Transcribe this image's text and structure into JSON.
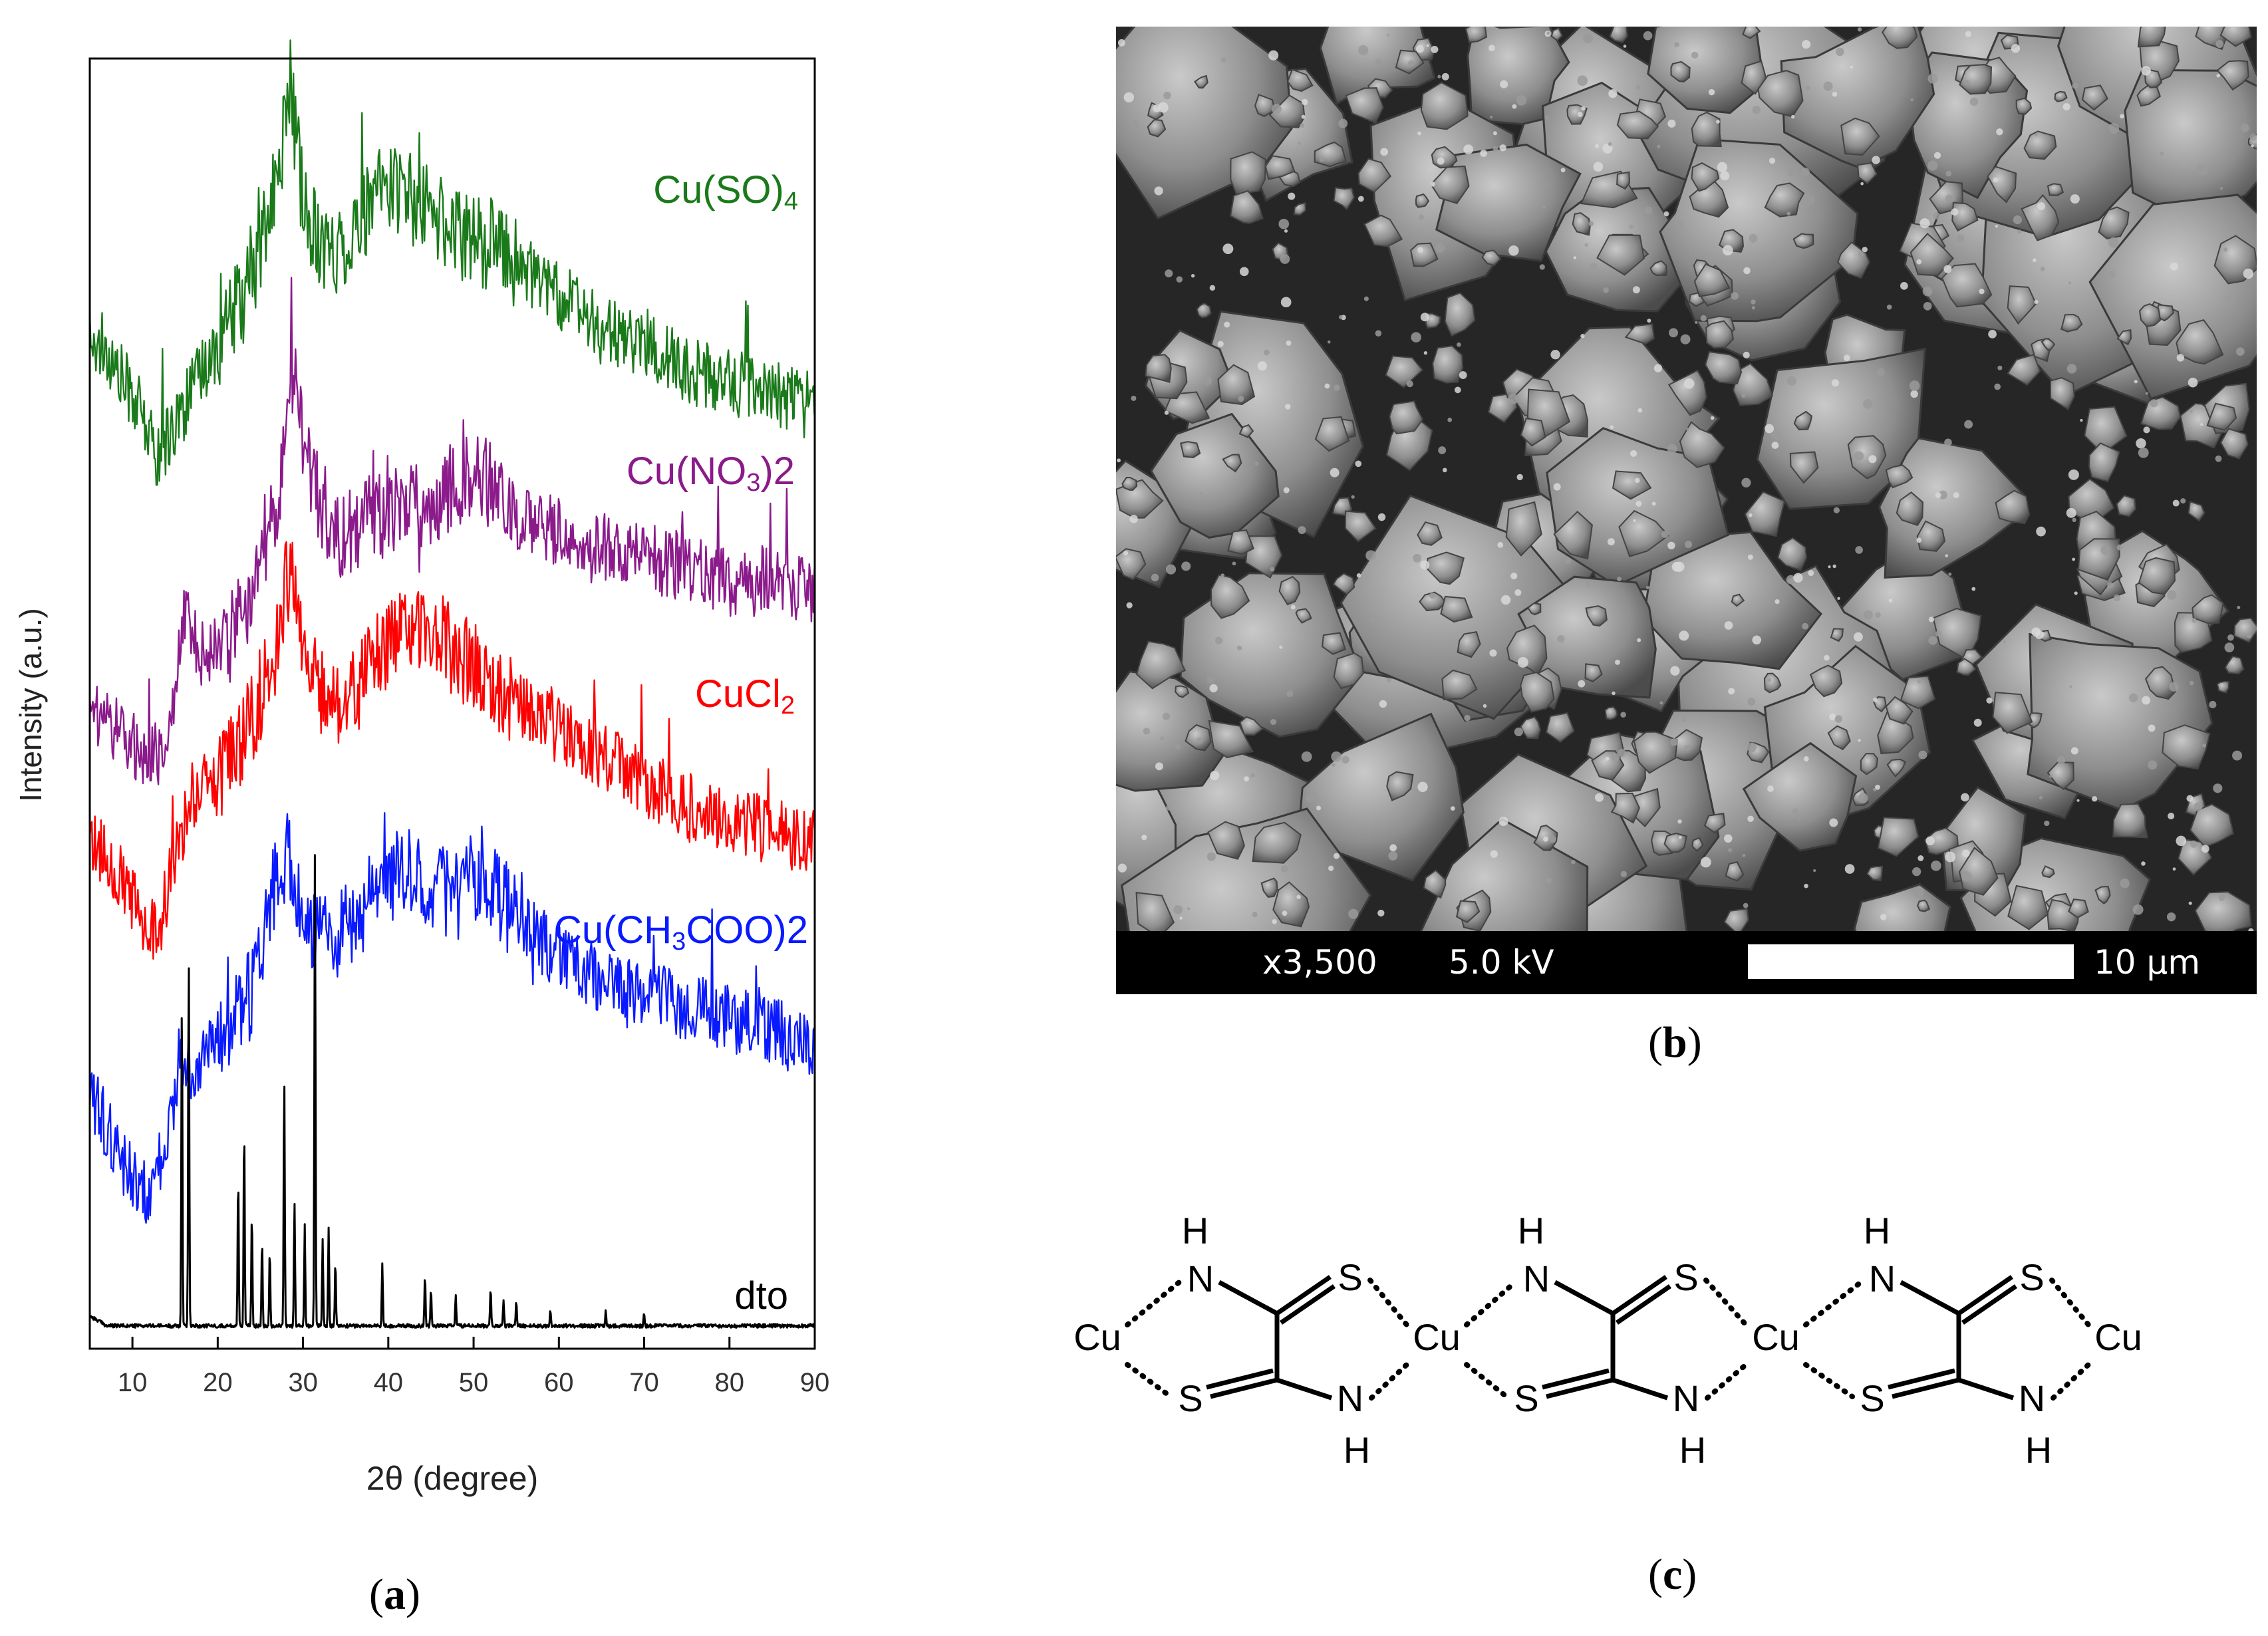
{
  "panels": {
    "a": {
      "open": "(",
      "letter": "a",
      "close": ")"
    },
    "b": {
      "open": "(",
      "letter": "b",
      "close": ")"
    },
    "c": {
      "open": "(",
      "letter": "c",
      "close": ")"
    }
  },
  "chart_data": {
    "type": "line",
    "xlabel": "2θ (degree)",
    "ylabel": "Intensity (a.u.)",
    "xlim": [
      5,
      90
    ],
    "xticks": [
      10,
      20,
      30,
      40,
      50,
      60,
      70,
      80,
      90
    ],
    "series": [
      {
        "name": "Cu(SO)4",
        "label_main": "Cu(SO)",
        "label_sub": "4",
        "label_tail": "",
        "color": "#1a7a1a",
        "x": [
          5,
          10,
          13,
          16,
          20,
          24,
          27,
          28.5,
          30,
          33,
          36,
          40,
          44,
          48,
          52,
          56,
          60,
          65,
          70,
          75,
          80,
          85,
          90
        ],
        "y": [
          0.8,
          0.75,
          0.7,
          0.74,
          0.79,
          0.84,
          0.92,
          1.0,
          0.9,
          0.86,
          0.88,
          0.92,
          0.9,
          0.88,
          0.87,
          0.85,
          0.83,
          0.8,
          0.79,
          0.77,
          0.76,
          0.75,
          0.74
        ]
      },
      {
        "name": "Cu(NO3)2",
        "label_main": "Cu(NO",
        "label_sub": "3",
        "label_tail": ")2",
        "color": "#8b1a8b",
        "x": [
          5,
          10,
          13,
          15,
          16,
          18,
          21,
          24,
          27,
          29,
          31,
          34,
          38,
          42,
          46,
          50,
          55,
          60,
          65,
          70,
          75,
          80,
          85,
          90
        ],
        "y": [
          0.5,
          0.47,
          0.46,
          0.5,
          0.58,
          0.54,
          0.55,
          0.59,
          0.66,
          0.76,
          0.68,
          0.64,
          0.65,
          0.66,
          0.67,
          0.69,
          0.65,
          0.64,
          0.63,
          0.62,
          0.61,
          0.6,
          0.6,
          0.59
        ]
      },
      {
        "name": "CuCl2",
        "label_main": "CuCl",
        "label_sub": "2",
        "label_tail": "",
        "color": "#ff0000",
        "x": [
          5,
          8,
          11,
          13,
          15,
          17,
          20,
          24,
          27,
          28.5,
          30,
          33,
          37,
          41,
          44,
          48,
          52,
          56,
          60,
          65,
          70,
          75,
          80,
          85,
          90
        ],
        "y": [
          0.4,
          0.37,
          0.33,
          0.32,
          0.38,
          0.43,
          0.44,
          0.49,
          0.55,
          0.62,
          0.54,
          0.5,
          0.52,
          0.56,
          0.57,
          0.54,
          0.52,
          0.5,
          0.48,
          0.46,
          0.44,
          0.42,
          0.41,
          0.4,
          0.39
        ]
      },
      {
        "name": "Cu(CH3COO)2",
        "label_main": "Cu(CH",
        "label_sub": "3",
        "label_tail": "COO)2",
        "color": "#0a1aff",
        "x": [
          5,
          8,
          10,
          12,
          14,
          15.5,
          17,
          20,
          24,
          27,
          28.5,
          30,
          33,
          37,
          41,
          44,
          48,
          51,
          55,
          60,
          65,
          70,
          75,
          80,
          85,
          90
        ],
        "y": [
          0.19,
          0.15,
          0.12,
          0.11,
          0.15,
          0.22,
          0.21,
          0.23,
          0.27,
          0.37,
          0.38,
          0.33,
          0.31,
          0.34,
          0.37,
          0.36,
          0.35,
          0.37,
          0.33,
          0.3,
          0.28,
          0.27,
          0.26,
          0.25,
          0.24,
          0.23
        ]
      },
      {
        "name": "dto",
        "label_main": "dto",
        "label_sub": "",
        "label_tail": "",
        "color": "#000000",
        "baseline": 0.005,
        "peaks": [
          [
            15.8,
            0.26
          ],
          [
            16.6,
            0.3
          ],
          [
            22.4,
            0.12
          ],
          [
            23.1,
            0.16
          ],
          [
            24.0,
            0.09
          ],
          [
            25.2,
            0.07
          ],
          [
            26.1,
            0.06
          ],
          [
            27.8,
            0.2
          ],
          [
            29.0,
            0.1
          ],
          [
            30.2,
            0.08
          ],
          [
            31.4,
            0.38
          ],
          [
            32.3,
            0.07
          ],
          [
            33.0,
            0.08
          ],
          [
            33.8,
            0.05
          ],
          [
            39.3,
            0.05
          ],
          [
            44.3,
            0.04
          ],
          [
            45.0,
            0.03
          ],
          [
            47.9,
            0.025
          ],
          [
            52.0,
            0.03
          ],
          [
            53.5,
            0.02
          ],
          [
            55.0,
            0.02
          ],
          [
            59.0,
            0.012
          ],
          [
            65.5,
            0.012
          ],
          [
            70.0,
            0.01
          ]
        ]
      }
    ]
  },
  "sem": {
    "magnification": "x3,500",
    "voltage": "5.0 kV",
    "scale": "10 µm"
  },
  "structure": {
    "atom_h": "H",
    "atom_n": "N",
    "atom_s": "S",
    "atom_cu": "Cu"
  }
}
